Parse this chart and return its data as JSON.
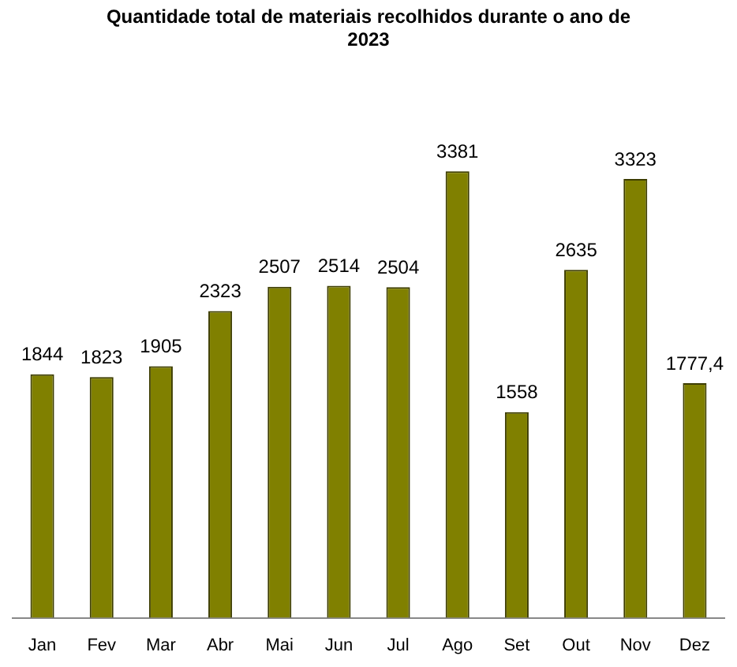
{
  "chart_data": {
    "type": "bar",
    "title": "Quantidade total de materiais recolhidos durante o ano de 2023",
    "categories": [
      "Jan",
      "Fev",
      "Mar",
      "Abr",
      "Mai",
      "Jun",
      "Jul",
      "Ago",
      "Set",
      "Out",
      "Nov",
      "Dez"
    ],
    "values": [
      1844,
      1823,
      1905,
      2323,
      2507,
      2514,
      2504,
      3381,
      1558,
      2635,
      3323,
      1777.4
    ],
    "value_labels": [
      "1844",
      "1823",
      "1905",
      "2323",
      "2507",
      "2514",
      "2504",
      "3381",
      "1558",
      "2635",
      "3323",
      "1777,4"
    ],
    "color": "#808000",
    "tick_labels": "x",
    "grid": false,
    "legend": false
  }
}
